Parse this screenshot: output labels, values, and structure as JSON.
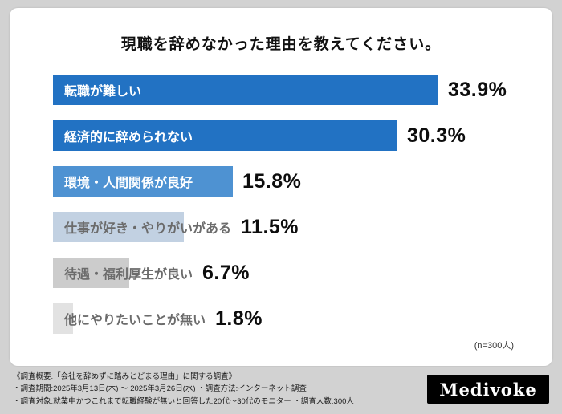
{
  "chart_data": {
    "type": "bar",
    "orientation": "horizontal",
    "title": "現職を辞めなかった理由を教えてください。",
    "categories": [
      "転職が難しい",
      "経済的に辞められない",
      "環境・人間関係が良好",
      "仕事が好き・やりがいがある",
      "待遇・福利厚生が良い",
      "他にやりたいことが無い"
    ],
    "values": [
      33.9,
      30.3,
      15.8,
      11.5,
      6.7,
      1.8
    ],
    "value_labels": [
      "33.9%",
      "30.3%",
      "15.8%",
      "11.5%",
      "6.7%",
      "1.8%"
    ],
    "bar_colors": [
      "#2272c3",
      "#2272c3",
      "#4e92d2",
      "#c2d1e2",
      "#cccccc",
      "#e2e2e2"
    ],
    "label_colors": [
      "#ffffff",
      "#ffffff",
      "#ffffff",
      "#6b6b6b",
      "#6b6b6b",
      "#6b6b6b"
    ],
    "xlim": [
      0,
      40
    ],
    "grid": false,
    "legend": "none",
    "sample_note": "(n=300人)"
  },
  "footer": {
    "line1": "《調査概要:「会社を辞めずに踏みとどまる理由」に関する調査》",
    "line2": "・調査期間:2025年3月13日(木) 〜 2025年3月26日(水) ・調査方法:インターネット調査",
    "line3": "・調査対象:就業中かつこれまで転職経験が無いと回答した20代〜30代のモニター ・調査人数:300人",
    "logo": "Medivoke"
  }
}
